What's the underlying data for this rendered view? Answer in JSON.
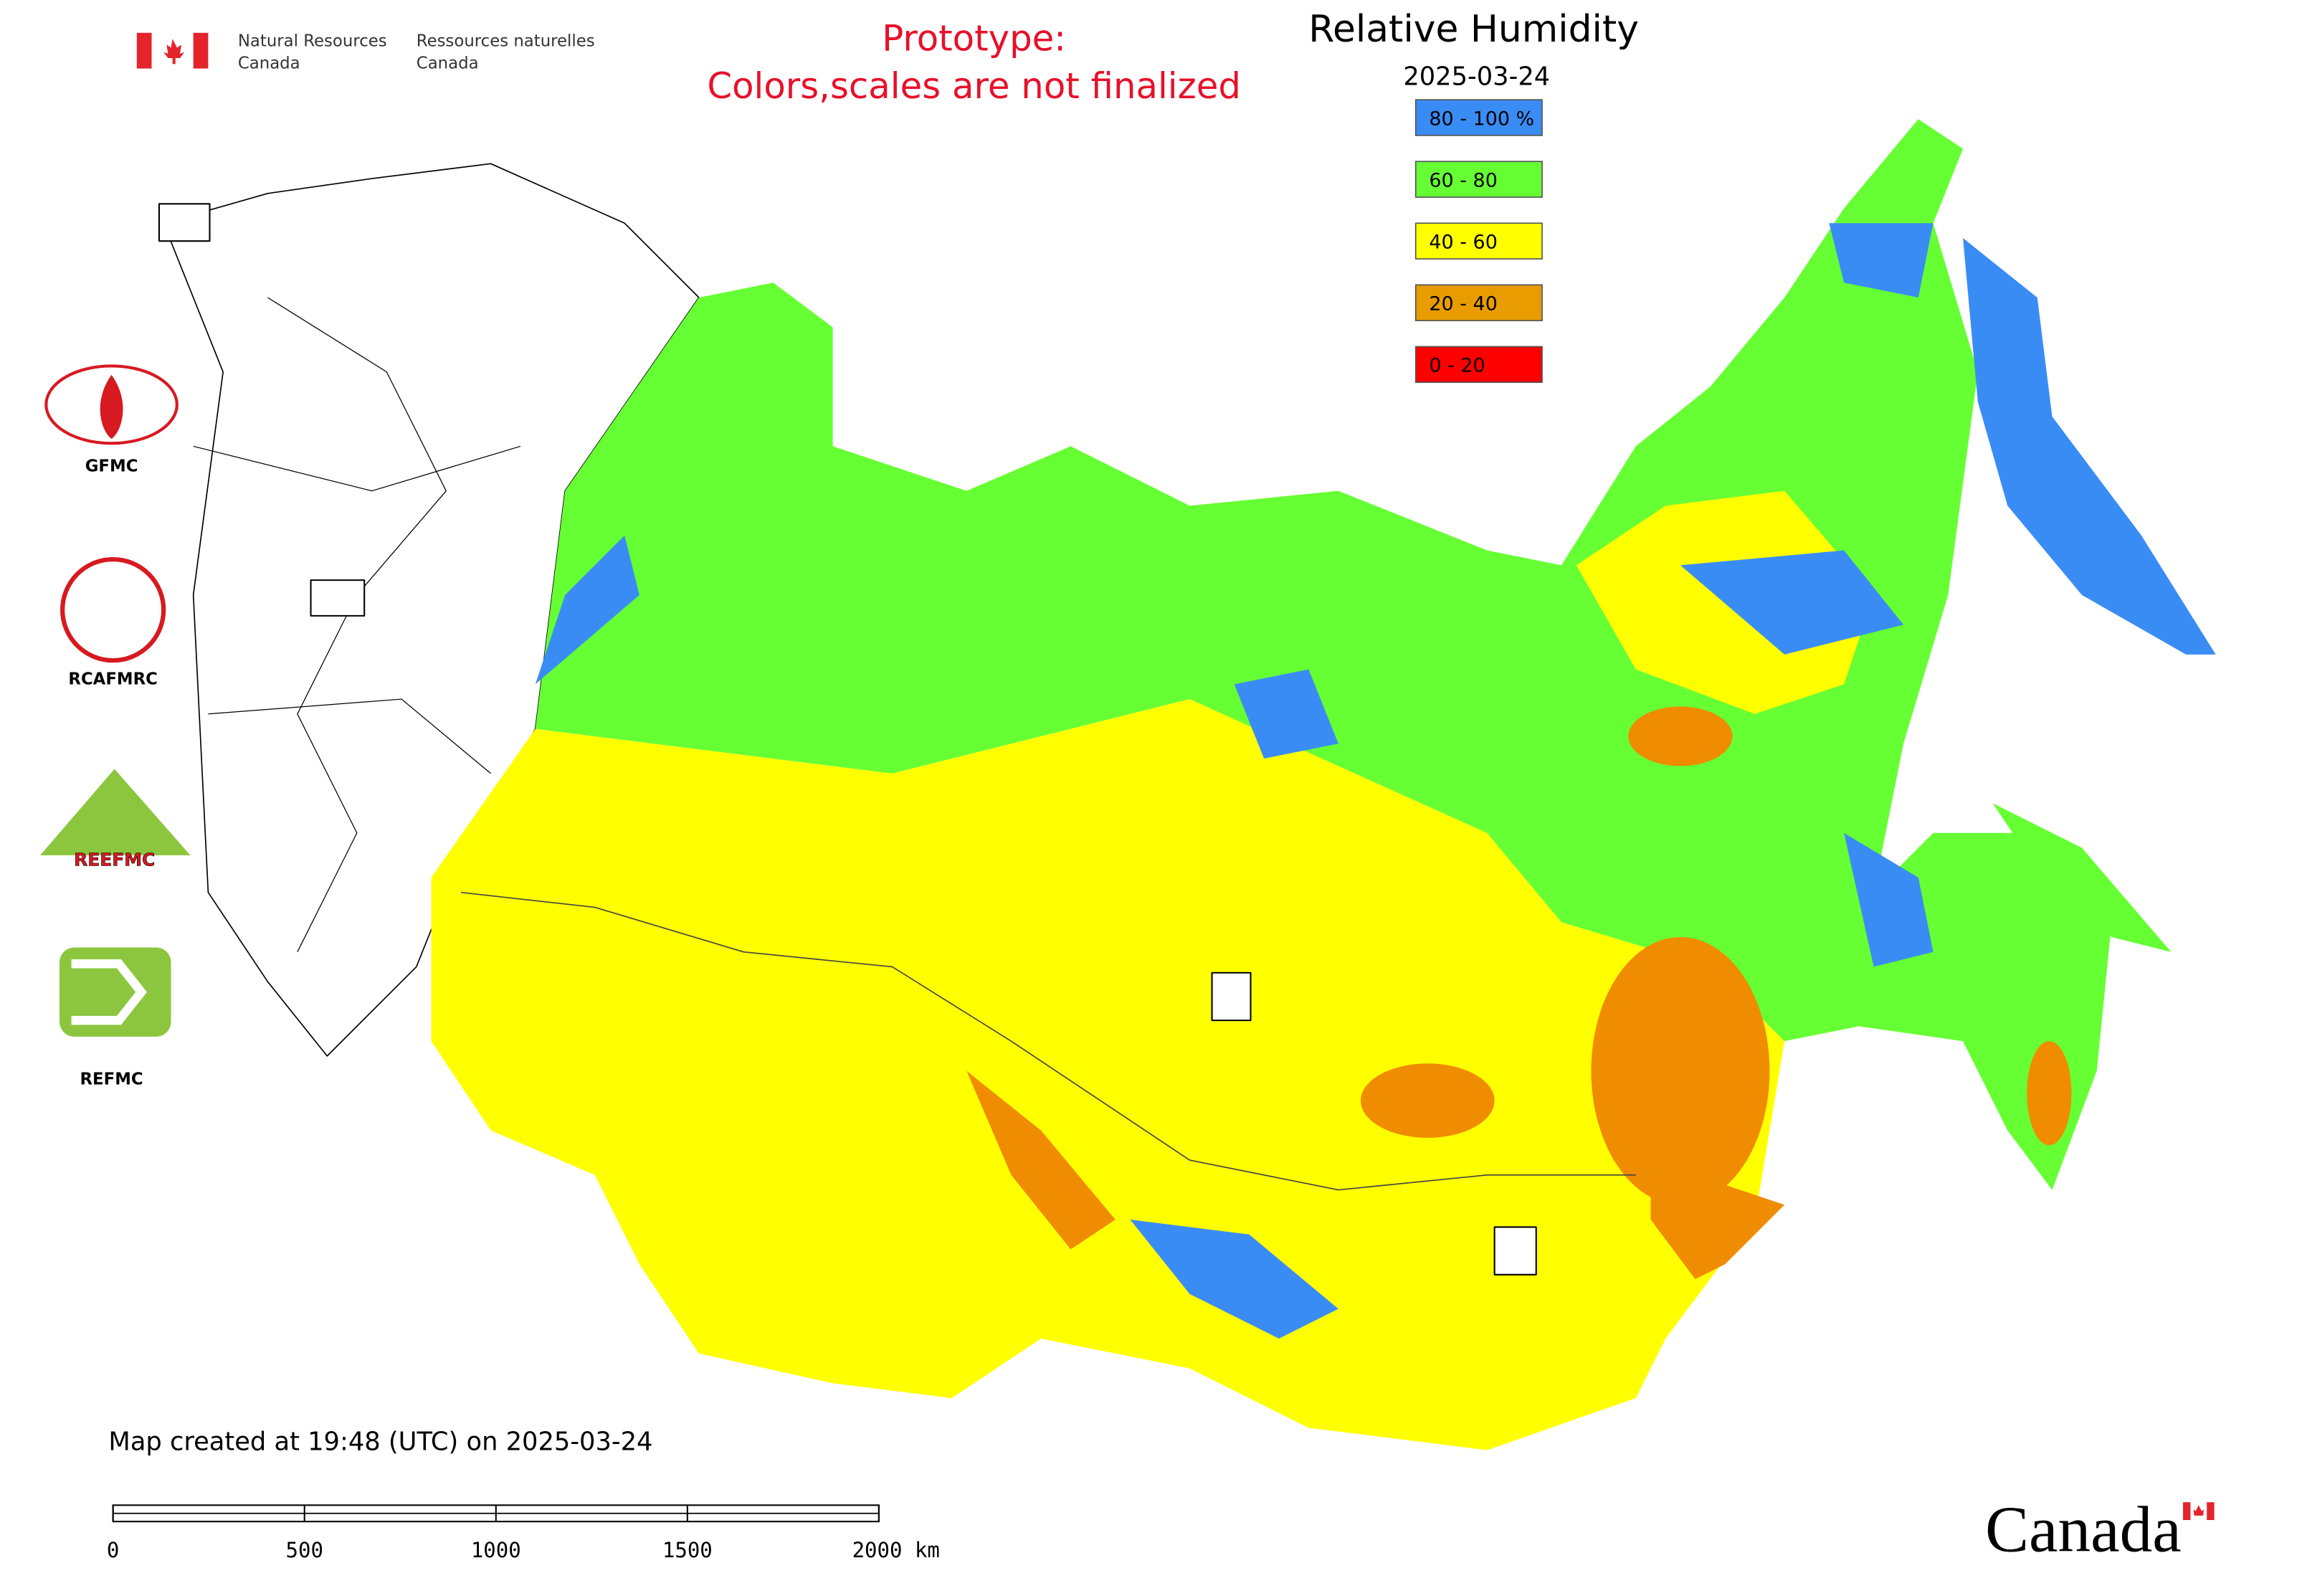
{
  "agency": {
    "en_line1": "Natural Resources",
    "en_line2": "Canada",
    "fr_line1": "Ressources naturelles",
    "fr_line2": "Canada"
  },
  "notice": [
    "Prototype:",
    "Colors,scales are not finalized"
  ],
  "title": "Relative Humidity",
  "date": "2025-03-24",
  "legend": [
    {
      "label": "80 - 100 %",
      "color": "#3a8cf5"
    },
    {
      "label": "60 - 80",
      "color": "#66ff33"
    },
    {
      "label": "40 - 60",
      "color": "#ffff00"
    },
    {
      "label": "20 - 40",
      "color": "#e89c00"
    },
    {
      "label": "0 - 20",
      "color": "#ff0000"
    }
  ],
  "logos": [
    "GFMC",
    "RCAFMRC",
    "REEFMC",
    "REFMC"
  ],
  "map_note": "Map created at 19:48 (UTC) on 2025-03-24",
  "scale_bar": [
    "0",
    "500",
    "1000",
    "1500",
    "2000 km"
  ],
  "wordmark": "Canada"
}
